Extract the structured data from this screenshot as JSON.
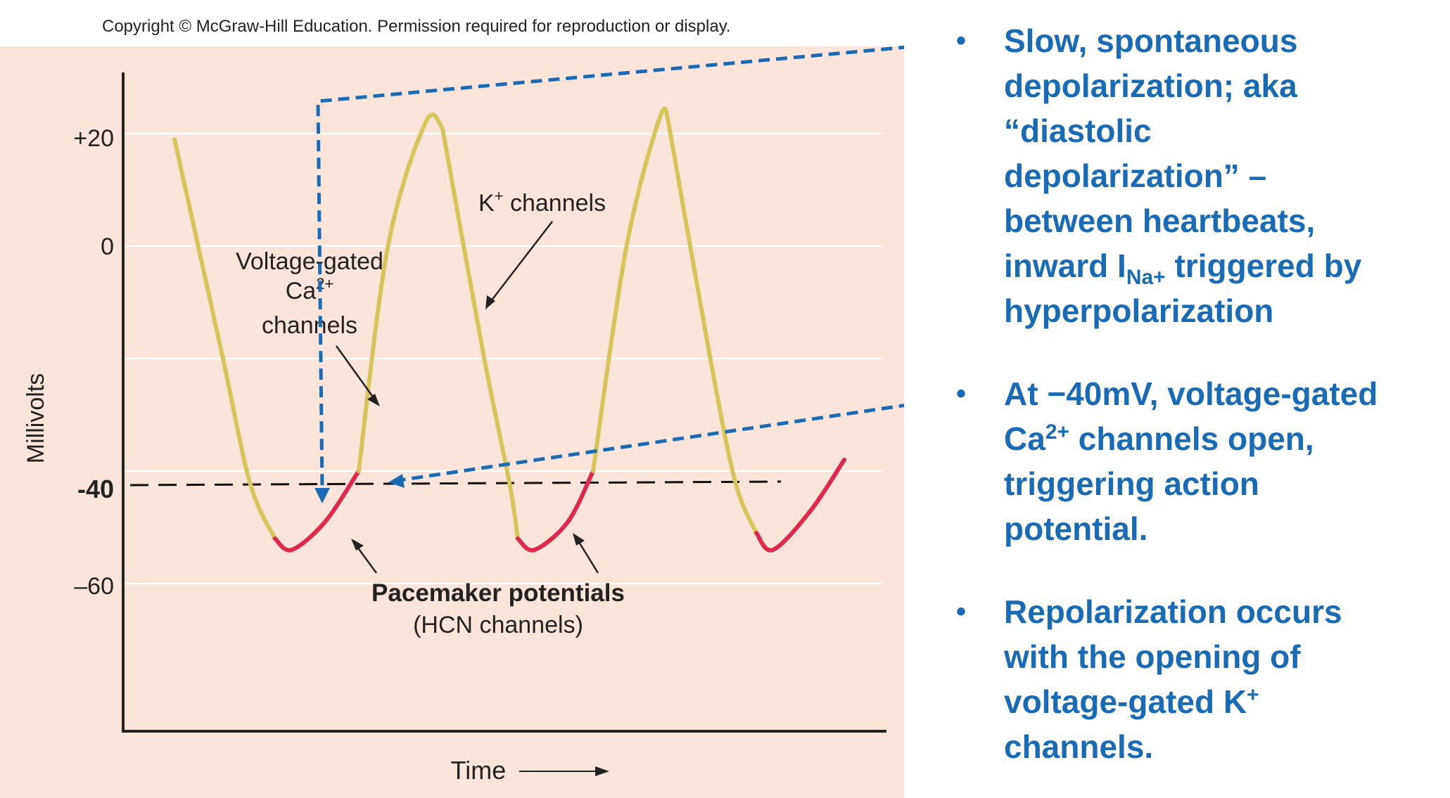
{
  "copyright": "Copyright © McGraw-Hill Education. Permission required for reproduction or display.",
  "chart_data": {
    "type": "line",
    "title": "",
    "xlabel": "Time",
    "ylabel": "Millivolts",
    "y_ticks": [
      "+20",
      "0",
      "–60"
    ],
    "threshold_label": "-40",
    "ylim": [
      -80,
      30
    ],
    "grid": true,
    "colors": {
      "action_potential": "#d9c45a",
      "pacemaker": "#e0284a",
      "threshold": "#111111",
      "callout": "#1a6bb5",
      "background": "#fbe4da"
    },
    "series": [
      {
        "segments": [
          {
            "phase": "repolarization",
            "x": [
              0.0,
              0.55,
              0.9,
              1.2
            ],
            "y": [
              19,
              -18,
              -42,
              -52
            ]
          },
          {
            "phase": "pacemaker",
            "x": [
              1.2,
              1.4,
              1.8,
              2.2
            ],
            "y": [
              -52,
              -54,
              -49,
              -40
            ]
          },
          {
            "phase": "depolarization",
            "x": [
              2.2,
              2.55,
              3.0,
              3.2
            ],
            "y": [
              -40,
              0,
              22,
              21
            ]
          },
          {
            "phase": "repolarization",
            "x": [
              3.2,
              3.7,
              4.0,
              4.1
            ],
            "y": [
              21,
              -20,
              -42,
              -52
            ]
          },
          {
            "phase": "pacemaker",
            "x": [
              4.1,
              4.3,
              4.7,
              5.0
            ],
            "y": [
              -52,
              -54,
              -49,
              -40
            ]
          },
          {
            "phase": "depolarization",
            "x": [
              5.0,
              5.4,
              5.8,
              5.9
            ],
            "y": [
              -40,
              0,
              23,
              22
            ]
          },
          {
            "phase": "repolarization",
            "x": [
              5.9,
              6.4,
              6.7,
              6.95
            ],
            "y": [
              22,
              -20,
              -42,
              -51
            ]
          },
          {
            "phase": "pacemaker",
            "x": [
              6.95,
              7.15,
              7.6,
              8.0
            ],
            "y": [
              -51,
              -54,
              -47,
              -38
            ]
          }
        ]
      }
    ],
    "annotations": {
      "k_channels": "K",
      "k_sup": "+",
      "k_rest": " channels",
      "ca_line1": "Voltage-gated",
      "ca_line2": "Ca",
      "ca_sup": "2+",
      "ca_line3": "channels",
      "pacemaker_title": "Pacemaker potentials",
      "pacemaker_sub": "(HCN channels)"
    }
  },
  "bullets": {
    "b1": {
      "l1": "Slow, spontaneous",
      "l2": "depolarization; aka",
      "l3": "“diastolic",
      "l4": "depolarization” –",
      "l5": "between heartbeats,",
      "l6a": "inward I",
      "l6sub": "Na+",
      "l6b": " triggered by",
      "l7": "hyperpolarization"
    },
    "b2": {
      "l1": "At −40mV, voltage-gated",
      "l2a": "Ca",
      "l2sup": "2+",
      "l2b": " channels open,",
      "l3": "triggering action",
      "l4": "potential."
    },
    "b3": {
      "l1": "Repolarization occurs",
      "l2": "with the opening of",
      "l3a": "voltage-gated K",
      "l3sup": "+",
      "l4": "channels."
    },
    "marker": "•"
  }
}
